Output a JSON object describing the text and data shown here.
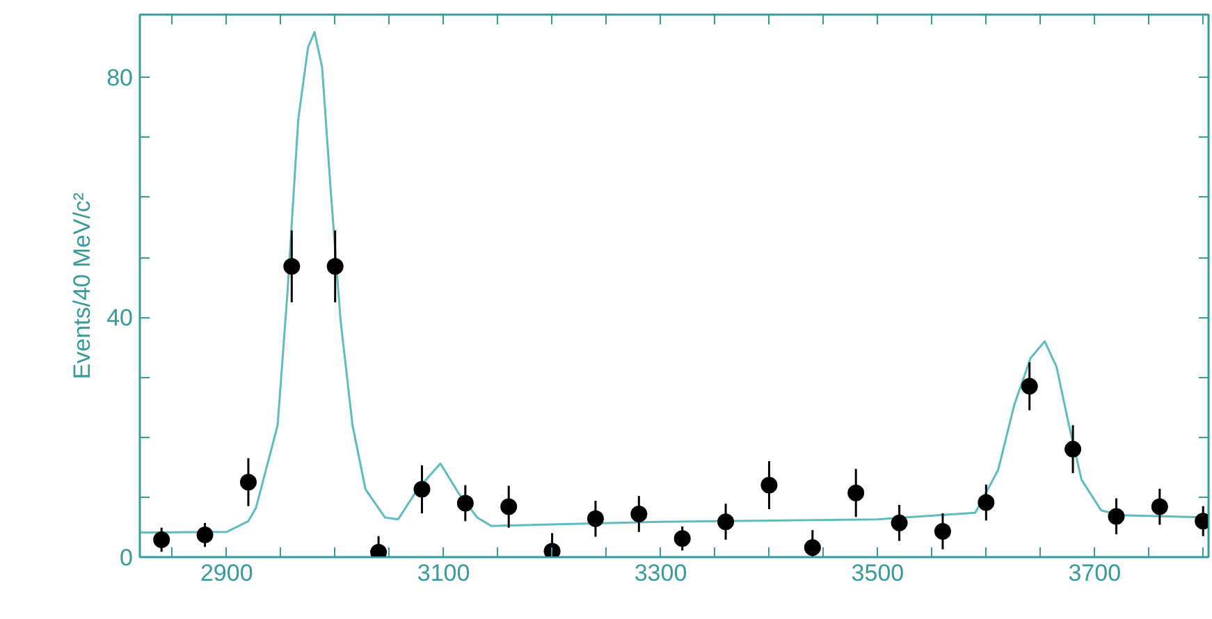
{
  "chart_data": {
    "type": "scatter",
    "ylabel": "Events/40 MeV/c²",
    "xlim": [
      2820,
      3805
    ],
    "ylim": [
      0,
      90.5
    ],
    "xticks": [
      {
        "value": 2850,
        "label": null
      },
      2900,
      {
        "value": 2950,
        "label": null
      },
      {
        "value": 3000,
        "label": null
      },
      {
        "value": 3050,
        "label": null
      },
      3100,
      {
        "value": 3150,
        "label": null
      },
      {
        "value": 3200,
        "label": null
      },
      {
        "value": 3250,
        "label": null
      },
      3300,
      {
        "value": 3350,
        "label": null
      },
      {
        "value": 3400,
        "label": null
      },
      {
        "value": 3450,
        "label": null
      },
      3500,
      {
        "value": 3550,
        "label": null
      },
      {
        "value": 3600,
        "label": null
      },
      {
        "value": 3650,
        "label": null
      },
      3700,
      {
        "value": 3750,
        "label": null
      },
      {
        "value": 3800,
        "label": null
      }
    ],
    "yticks": [
      0,
      {
        "value": 10,
        "label": null
      },
      {
        "value": 20,
        "label": null
      },
      {
        "value": 30,
        "label": null
      },
      40,
      {
        "value": 50,
        "label": null
      },
      {
        "value": 60,
        "label": null
      },
      {
        "value": 70,
        "label": null
      },
      80
    ],
    "grid": false,
    "series": [
      {
        "color": "#000000",
        "marker": "circle",
        "x": [
          2840,
          2880,
          2920,
          2960,
          3000,
          3040,
          3080,
          3120,
          3160,
          3200,
          3240,
          3280,
          3320,
          3360,
          3400,
          3440,
          3480,
          3520,
          3560,
          3600,
          3640,
          3680,
          3720,
          3760,
          3800
        ],
        "values": [
          2.9,
          3.7,
          12.5,
          48.5,
          48.5,
          0.8,
          11.3,
          9.0,
          8.4,
          1.0,
          6.4,
          7.2,
          3.1,
          5.9,
          12.0,
          1.6,
          10.7,
          5.7,
          4.3,
          9.1,
          28.5,
          18.0,
          6.8,
          8.4,
          6.0
        ],
        "errors": [
          2,
          2,
          4,
          6,
          6,
          [
            0,
            3.5
          ],
          4,
          3,
          3.5,
          [
            0,
            4
          ],
          3,
          3,
          2,
          3,
          4,
          [
            0,
            4.5
          ],
          4,
          3,
          3,
          3,
          4,
          4,
          3,
          3,
          2.5
        ]
      },
      {
        "type": "line",
        "color": "#5fbcbc",
        "line_style": "solid",
        "x": [
          2820,
          2900,
          2920,
          2927,
          2947,
          2956,
          2966,
          2975,
          2981,
          2988,
          2996,
          3005,
          3016,
          3028,
          3046,
          3058,
          3076,
          3097,
          3114,
          3131,
          3144,
          3300,
          3500,
          3590,
          3611,
          3626,
          3641,
          3654,
          3665,
          3676,
          3688,
          3706,
          3723,
          3805
        ],
        "values": [
          4.1,
          4.2,
          6.0,
          8.2,
          22,
          44,
          73,
          85,
          87.6,
          81.7,
          61,
          39.5,
          22,
          11.3,
          6.6,
          6.3,
          11.3,
          15.6,
          10.6,
          6.6,
          5.2,
          5.9,
          6.3,
          7.4,
          14.5,
          25.4,
          33.2,
          36,
          31.7,
          22.3,
          12.9,
          7.8,
          7.0,
          6.6
        ]
      }
    ]
  }
}
